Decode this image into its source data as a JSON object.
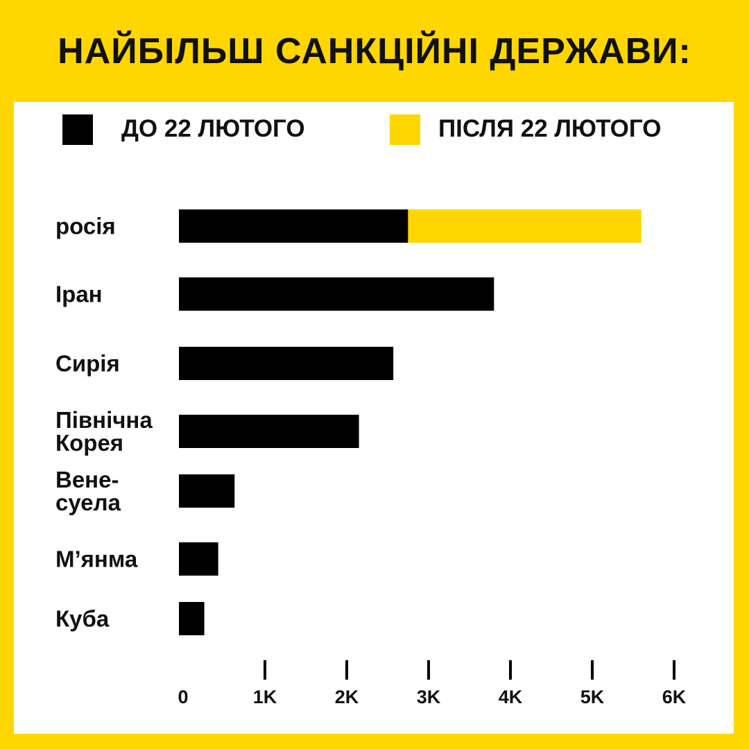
{
  "chart_data": {
    "type": "bar",
    "orientation": "horizontal",
    "stacked": true,
    "title": "НАЙБІЛЬШ САНКЦІЙНІ ДЕРЖАВИ:",
    "categories": [
      "росія",
      "Іран",
      "Сирія",
      "Північна\nКорея",
      "Вене-\nсуела",
      "М’янма",
      "Куба"
    ],
    "series": [
      {
        "name": "ДО 22 ЛЮТОГО",
        "color": "#000000",
        "values": [
          2800,
          3850,
          2620,
          2200,
          680,
          480,
          310
        ]
      },
      {
        "name": "ПІСЛЯ  22 ЛЮТОГО",
        "color": "#FFD600",
        "values": [
          2850,
          0,
          0,
          0,
          0,
          0,
          0
        ]
      }
    ],
    "xlim": [
      0,
      6000
    ],
    "xticks": [
      0,
      {
        "value": 1000,
        "label": "1K"
      },
      {
        "value": 2000,
        "label": "2K"
      },
      {
        "value": 3000,
        "label": "3K"
      },
      {
        "value": 4000,
        "label": "4K"
      },
      {
        "value": 5000,
        "label": "5K"
      },
      {
        "value": 6000,
        "label": "6K"
      }
    ],
    "legend": "top"
  }
}
